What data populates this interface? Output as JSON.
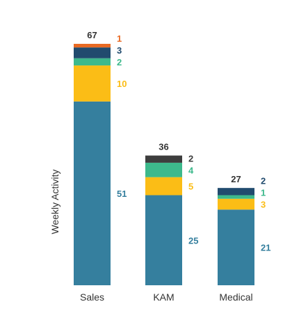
{
  "chart_data": {
    "type": "bar",
    "stacked": true,
    "categories": [
      "Sales",
      "KAM",
      "Medical"
    ],
    "ylabel": "Weekly Activity",
    "xlabel": "",
    "grid": false,
    "legend": "none",
    "ylim": [
      0,
      67
    ],
    "series": [
      {
        "values": [
          51,
          25,
          21
        ],
        "color": "#357f9e"
      },
      {
        "values": [
          10,
          5,
          3
        ],
        "color": "#fbbd16"
      },
      {
        "values": [
          2,
          4,
          1
        ],
        "color": "#3db98c"
      },
      {
        "values": [
          3,
          0,
          2
        ],
        "color": "#214b6e"
      },
      {
        "values": [
          0,
          2,
          0
        ],
        "color": "#3d3d3d"
      },
      {
        "values": [
          1,
          0,
          0
        ],
        "color": "#e96a23"
      }
    ],
    "totals": [
      67,
      36,
      27
    ]
  }
}
